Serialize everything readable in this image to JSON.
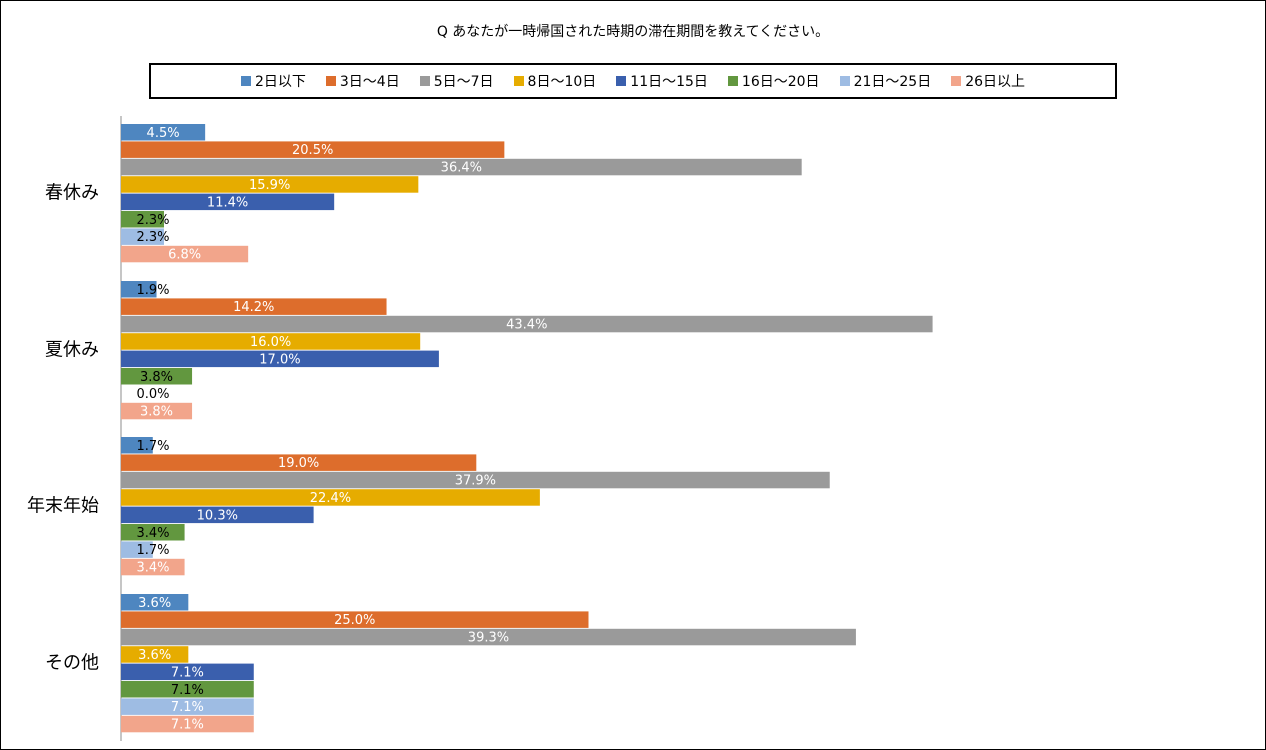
{
  "chart_data": {
    "type": "bar",
    "orientation": "horizontal",
    "title": "Q あなたが一時帰国された時期の滞在期間を教えてください。",
    "categories": [
      "春休み",
      "夏休み",
      "年末年始",
      "その他"
    ],
    "series": [
      {
        "name": "2日以下",
        "color": "#4e86c0",
        "values": [
          4.5,
          1.9,
          1.7,
          3.6
        ],
        "labels": [
          "4.5%",
          "1.9%",
          "1.7%",
          "3.6%"
        ]
      },
      {
        "name": "3日～4日",
        "color": "#dd6d2c",
        "values": [
          20.5,
          14.2,
          19.0,
          25.0
        ],
        "labels": [
          "20.5%",
          "14.2%",
          "19.0%",
          "25.0%"
        ]
      },
      {
        "name": "5日～7日",
        "color": "#9a9a9a",
        "values": [
          36.4,
          43.4,
          37.9,
          39.3
        ],
        "labels": [
          "36.4%",
          "43.4%",
          "37.9%",
          "39.3%"
        ]
      },
      {
        "name": "8日～10日",
        "color": "#e6ac00",
        "values": [
          15.9,
          16.0,
          22.4,
          3.6
        ],
        "labels": [
          "15.9%",
          "16.0%",
          "22.4%",
          "3.6%"
        ]
      },
      {
        "name": "11日～15日",
        "color": "#3a5fad",
        "values": [
          11.4,
          17.0,
          10.3,
          7.1
        ],
        "labels": [
          "11.4%",
          "17.0%",
          "10.3%",
          "7.1%"
        ]
      },
      {
        "name": "16日～20日",
        "color": "#62973f",
        "values": [
          2.3,
          3.8,
          3.4,
          7.1
        ],
        "labels": [
          "2.3%",
          "3.8%",
          "3.4%",
          "7.1%"
        ]
      },
      {
        "name": "21日～25日",
        "color": "#9ebce3",
        "values": [
          2.3,
          0.0,
          1.7,
          7.1
        ],
        "labels": [
          "2.3%",
          "0.0%",
          "1.7%",
          "7.1%"
        ]
      },
      {
        "name": "26日以上",
        "color": "#f2a58b",
        "values": [
          6.8,
          3.8,
          3.4,
          7.1
        ],
        "labels": [
          "6.8%",
          "3.8%",
          "3.4%",
          "7.1%"
        ]
      }
    ],
    "xlim": [
      0,
      50
    ],
    "grid": false,
    "legend_position": "top"
  }
}
